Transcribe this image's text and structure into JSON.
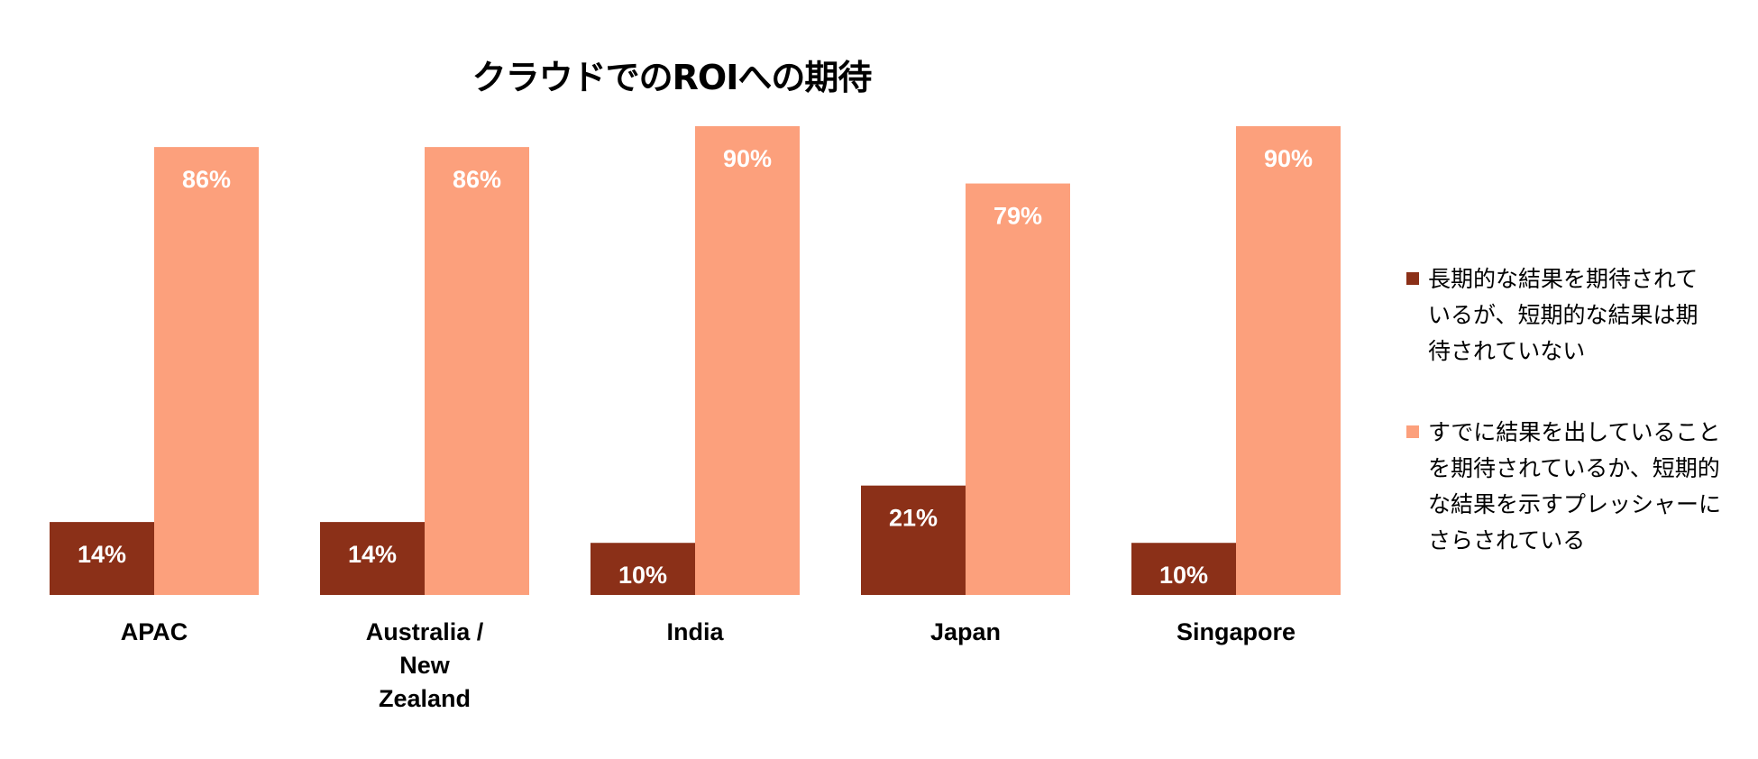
{
  "chart_data": {
    "type": "bar",
    "title": "クラウドでのROIへの期待",
    "categories": [
      "APAC",
      "Australia / New Zealand",
      "India",
      "Japan",
      "Singapore"
    ],
    "category_lines": [
      [
        "APAC"
      ],
      [
        "Australia /",
        "New",
        "Zealand"
      ],
      [
        "India"
      ],
      [
        "Japan"
      ],
      [
        "Singapore"
      ]
    ],
    "series": [
      {
        "name": "長期的な結果を期待されているが、短期的な結果は期待されていない",
        "values": [
          14,
          14,
          10,
          21,
          10
        ],
        "labels": [
          "14%",
          "14%",
          "10%",
          "21%",
          "10%"
        ],
        "color": "#8B3018"
      },
      {
        "name": "すでに結果を出していることを期待されているか、短期的な結果を示すプレッシャーにさらされている",
        "values": [
          86,
          86,
          90,
          79,
          90
        ],
        "labels": [
          "86%",
          "86%",
          "90%",
          "79%",
          "90%"
        ],
        "color": "#FCA07C"
      }
    ],
    "ylim": [
      0,
      90
    ],
    "grid": false,
    "legend_position": "right"
  },
  "legend": {
    "items": [
      {
        "lines": [
          "長期的な結果を期待されて",
          "いるが、短期的な結果は期",
          "待されていない"
        ],
        "color": "#8B3018"
      },
      {
        "lines": [
          "すでに結果を出していること",
          "を期待されているか、短期的",
          "な結果を示すプレッシャーに",
          "さらされている"
        ],
        "color": "#FCA07C"
      }
    ]
  }
}
